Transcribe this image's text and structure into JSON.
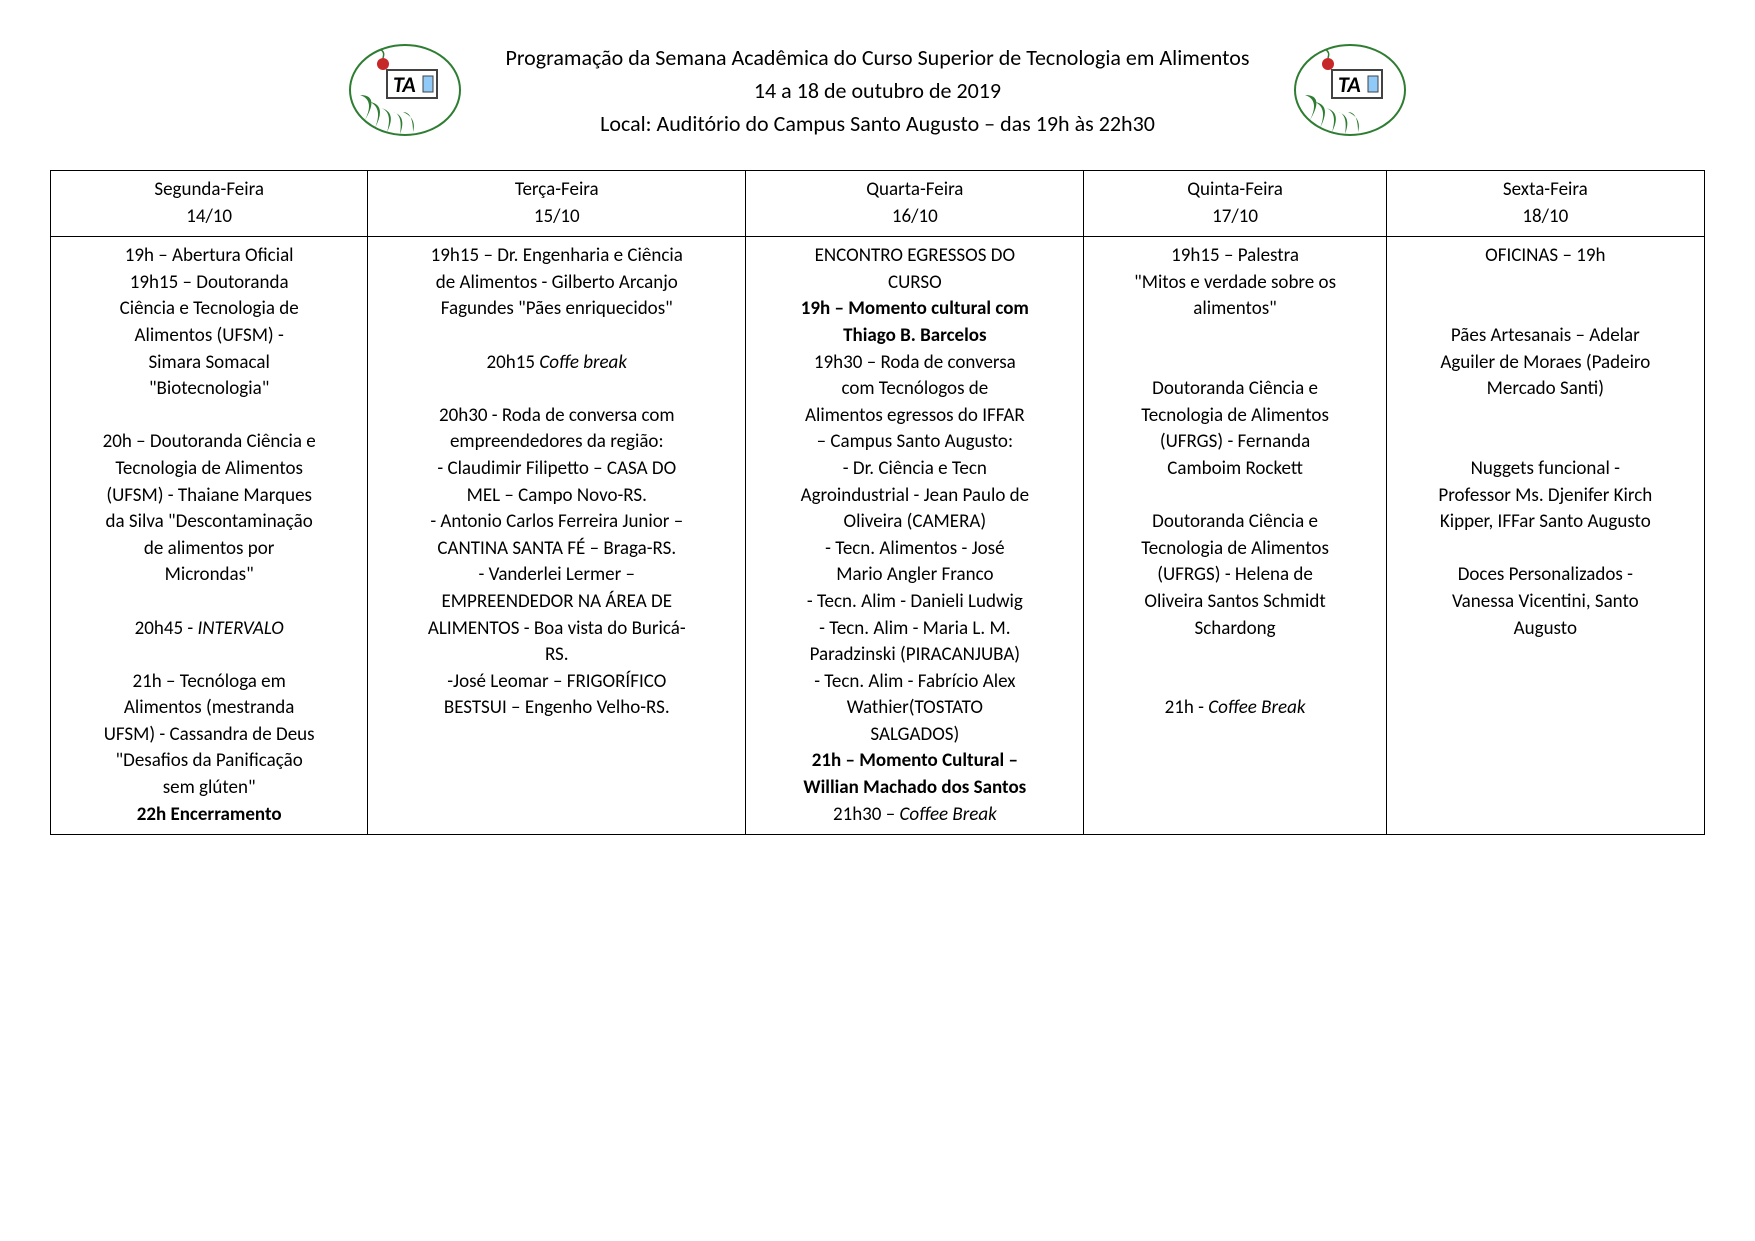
{
  "colors": {
    "text": "#000000",
    "background": "#ffffff",
    "border": "#000000",
    "logo_leaf": "#2e7d32",
    "logo_red": "#c62828",
    "logo_blue": "#90caf9",
    "logo_frame": "#424242"
  },
  "header": {
    "line1": "Programação da Semana Acadêmica do Curso Superior de Tecnologia em Alimentos",
    "line2": "14 a 18 de outubro de 2019",
    "line3": "Local: Auditório do Campus Santo Augusto – das 19h às 22h30"
  },
  "table": {
    "columns": [
      {
        "day": "Segunda-Feira",
        "date": "14/10"
      },
      {
        "day": "Terça-Feira",
        "date": "15/10"
      },
      {
        "day": "Quarta-Feira",
        "date": "16/10"
      },
      {
        "day": "Quinta-Feira",
        "date": "17/10"
      },
      {
        "day": "Sexta-Feira",
        "date": "18/10"
      }
    ],
    "cells": {
      "c0": [
        {
          "t": "19h – Abertura Oficial"
        },
        {
          "t": "19h15 – Doutoranda"
        },
        {
          "t": "Ciência e Tecnologia de"
        },
        {
          "t": "Alimentos (UFSM) -"
        },
        {
          "t": "Simara Somacal"
        },
        {
          "t": "\"Biotecnologia\""
        },
        {
          "t": " "
        },
        {
          "t": "20h – Doutoranda Ciência e"
        },
        {
          "t": "Tecnologia de Alimentos"
        },
        {
          "t": "(UFSM)  - Thaiane Marques"
        },
        {
          "t": "da Silva \"Descontaminação"
        },
        {
          "t": "de alimentos por"
        },
        {
          "t": "Microndas\""
        },
        {
          "t": " "
        },
        {
          "t": "20h45 - ",
          "italicAfter": "INTERVALO"
        },
        {
          "t": " "
        },
        {
          "t": "21h – Tecnóloga em"
        },
        {
          "t": "Alimentos (mestranda"
        },
        {
          "t": "UFSM) - Cassandra de Deus"
        },
        {
          "t": "\"Desafios da Panificação"
        },
        {
          "t": "sem glúten\""
        },
        {
          "t": "22h Encerramento",
          "bold": true
        }
      ],
      "c1": [
        {
          "t": "19h15 – Dr. Engenharia e Ciência"
        },
        {
          "t": "de Alimentos - Gilberto Arcanjo"
        },
        {
          "t": "Fagundes \"Pães enriquecidos\""
        },
        {
          "t": " "
        },
        {
          "t": "20h15 ",
          "italicAfter": "Coffe break"
        },
        {
          "t": " "
        },
        {
          "t": "20h30 - Roda de conversa com"
        },
        {
          "t": "empreendedores da região:"
        },
        {
          "t": "- Claudimir Filipetto – CASA DO"
        },
        {
          "t": "MEL – Campo Novo-RS."
        },
        {
          "t": "- Antonio Carlos Ferreira Junior –"
        },
        {
          "t": "CANTINA SANTA FÉ – Braga-RS."
        },
        {
          "t": "- Vanderlei Lermer –"
        },
        {
          "t": "EMPREENDEDOR NA ÁREA DE"
        },
        {
          "t": "ALIMENTOS - Boa vista do Buricá-"
        },
        {
          "t": "RS."
        },
        {
          "t": "-José Leomar – FRIGORÍFICO"
        },
        {
          "t": "BESTSUI – Engenho Velho-RS."
        }
      ],
      "c2": [
        {
          "t": "ENCONTRO EGRESSOS DO"
        },
        {
          "t": "CURSO"
        },
        {
          "t": "19h – Momento cultural com",
          "bold": true
        },
        {
          "t": "Thiago B. Barcelos",
          "bold": true
        },
        {
          "t": "19h30 – Roda de conversa"
        },
        {
          "t": "com Tecnólogos de"
        },
        {
          "t": "Alimentos egressos do IFFAR"
        },
        {
          "t": "– Campus Santo Augusto:"
        },
        {
          "t": "- Dr. Ciência e Tecn"
        },
        {
          "t": "Agroindustrial - Jean Paulo de"
        },
        {
          "t": "Oliveira (CAMERA)"
        },
        {
          "t": "- Tecn. Alimentos - José"
        },
        {
          "t": "Mario Angler Franco"
        },
        {
          "t": "- Tecn. Alim - Danieli Ludwig"
        },
        {
          "t": "- Tecn. Alim - Maria L. M."
        },
        {
          "t": "Paradzinski (PIRACANJUBA)"
        },
        {
          "t": "- Tecn. Alim - Fabrício Alex"
        },
        {
          "t": "Wathier(TOSTATO"
        },
        {
          "t": "SALGADOS)"
        },
        {
          "t": "21h – Momento Cultural –",
          "bold": true
        },
        {
          "t": "Willian Machado dos Santos",
          "bold": true
        },
        {
          "t": "21h30 – ",
          "italicAfter": "Coffee Break"
        }
      ],
      "c3": [
        {
          "t": "19h15 – Palestra"
        },
        {
          "t": "\"Mitos e verdade sobre os"
        },
        {
          "t": "alimentos\""
        },
        {
          "t": " "
        },
        {
          "t": " "
        },
        {
          "t": "Doutoranda Ciência e"
        },
        {
          "t": "Tecnologia de Alimentos"
        },
        {
          "t": "(UFRGS) - Fernanda"
        },
        {
          "t": "Camboim Rockett"
        },
        {
          "t": " "
        },
        {
          "t": "Doutoranda Ciência e"
        },
        {
          "t": "Tecnologia de Alimentos"
        },
        {
          "t": "(UFRGS)  - Helena de"
        },
        {
          "t": "Oliveira Santos Schmidt"
        },
        {
          "t": "Schardong"
        },
        {
          "t": " "
        },
        {
          "t": " "
        },
        {
          "t": "21h  -  ",
          "italicAfter": "Coffee Break"
        }
      ],
      "c4": [
        {
          "t": "OFICINAS – 19h"
        },
        {
          "t": " "
        },
        {
          "t": " "
        },
        {
          "t": "Pães Artesanais – Adelar"
        },
        {
          "t": "Aguiler de Moraes (Padeiro"
        },
        {
          "t": "Mercado Santi)"
        },
        {
          "t": " "
        },
        {
          "t": " "
        },
        {
          "t": "Nuggets funcional -"
        },
        {
          "t": "Professor Ms. Djenifer Kirch"
        },
        {
          "t": "Kipper, IFFar Santo Augusto"
        },
        {
          "t": " "
        },
        {
          "t": "Doces Personalizados -"
        },
        {
          "t": "Vanessa Vicentini, Santo"
        },
        {
          "t": "Augusto"
        }
      ]
    }
  }
}
